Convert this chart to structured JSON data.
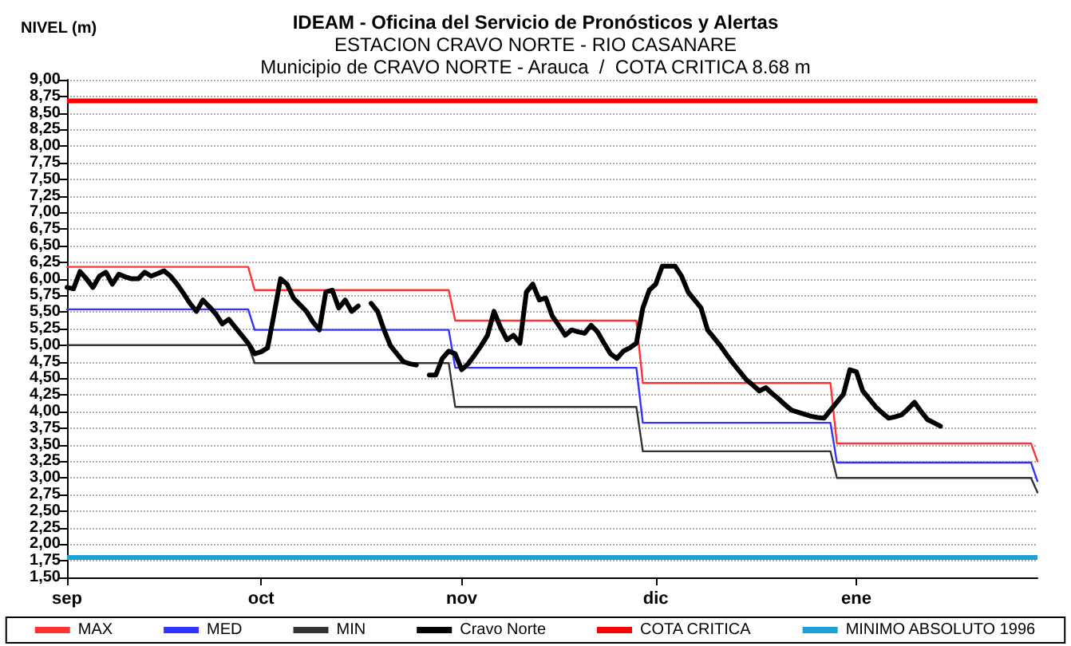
{
  "chart_data": {
    "type": "line",
    "title": "IDEAM - Oficina del Servicio de Pronósticos y Alertas",
    "subtitle": "ESTACION CRAVO NORTE - RIO CASANARE\nMunicipio de CRAVO NORTE - Arauca  /  COTA CRITICA 8.68 m",
    "ylabel": "NIVEL (m)",
    "categories": [
      "sep",
      null,
      null,
      null,
      null,
      null,
      null,
      null,
      null,
      null,
      null,
      null,
      null,
      null,
      null,
      null,
      null,
      null,
      null,
      null,
      null,
      null,
      null,
      null,
      null,
      null,
      null,
      null,
      null,
      null,
      "oct",
      null,
      null,
      null,
      null,
      null,
      null,
      null,
      null,
      null,
      null,
      null,
      null,
      null,
      null,
      null,
      null,
      null,
      null,
      null,
      null,
      null,
      null,
      null,
      null,
      null,
      null,
      null,
      null,
      null,
      null,
      "nov",
      null,
      null,
      null,
      null,
      null,
      null,
      null,
      null,
      null,
      null,
      null,
      null,
      null,
      null,
      null,
      null,
      null,
      null,
      null,
      null,
      null,
      null,
      null,
      null,
      null,
      null,
      null,
      null,
      null,
      "dic",
      null,
      null,
      null,
      null,
      null,
      null,
      null,
      null,
      null,
      null,
      null,
      null,
      null,
      null,
      null,
      null,
      null,
      null,
      null,
      null,
      null,
      null,
      null,
      null,
      null,
      null,
      null,
      null,
      null,
      null,
      "ene",
      null,
      null,
      null,
      null,
      null,
      null,
      null,
      null,
      null,
      null,
      null,
      null,
      null,
      null,
      null,
      null,
      null,
      null,
      null,
      null,
      null,
      null,
      null,
      null,
      null,
      null,
      null,
      null
    ],
    "ylim": [
      1.5,
      9
    ],
    "yticks": [
      {
        "value": 1.5,
        "label": "1,50"
      },
      {
        "value": 1.75,
        "label": "1,75"
      },
      {
        "value": 2,
        "label": "2,00"
      },
      {
        "value": 2.25,
        "label": "2,25"
      },
      {
        "value": 2.5,
        "label": "2,50"
      },
      {
        "value": 2.75,
        "label": "2,75"
      },
      {
        "value": 3,
        "label": "3,00"
      },
      {
        "value": 3.25,
        "label": "3,25"
      },
      {
        "value": 3.5,
        "label": "3,50"
      },
      {
        "value": 3.75,
        "label": "3,75"
      },
      {
        "value": 4,
        "label": "4,00"
      },
      {
        "value": 4.25,
        "label": "4,25"
      },
      {
        "value": 4.5,
        "label": "4,50"
      },
      {
        "value": 4.75,
        "label": "4,75"
      },
      {
        "value": 5,
        "label": "5,00"
      },
      {
        "value": 5.25,
        "label": "5,25"
      },
      {
        "value": 5.5,
        "label": "5,50"
      },
      {
        "value": 5.75,
        "label": "5,75"
      },
      {
        "value": 6,
        "label": "6,00"
      },
      {
        "value": 6.25,
        "label": "6,25"
      },
      {
        "value": 6.5,
        "label": "6,50"
      },
      {
        "value": 6.75,
        "label": "6,75"
      },
      {
        "value": 7,
        "label": "7,00"
      },
      {
        "value": 7.25,
        "label": "7,25"
      },
      {
        "value": 7.5,
        "label": "7,50"
      },
      {
        "value": 7.75,
        "label": "7,75"
      },
      {
        "value": 8,
        "label": "8,00"
      },
      {
        "value": 8.25,
        "label": "8,25"
      },
      {
        "value": 8.5,
        "label": "8,50"
      },
      {
        "value": 8.75,
        "label": "8,75"
      },
      {
        "value": 9,
        "label": "9,00"
      }
    ],
    "grid": "y",
    "legend": "bottom",
    "marker": "none",
    "line_style": "solid",
    "series": [
      {
        "name": "MAX",
        "color": "#ff3333",
        "values": [
          6.18,
          6.18,
          6.18,
          6.18,
          6.18,
          6.18,
          6.18,
          6.18,
          6.18,
          6.18,
          6.18,
          6.18,
          6.18,
          6.18,
          6.18,
          6.18,
          6.18,
          6.18,
          6.18,
          6.18,
          6.18,
          6.18,
          6.18,
          6.18,
          6.18,
          6.18,
          6.18,
          6.18,
          6.18,
          5.83,
          5.83,
          5.83,
          5.83,
          5.83,
          5.83,
          5.83,
          5.83,
          5.83,
          5.83,
          5.83,
          5.83,
          5.83,
          5.83,
          5.83,
          5.83,
          5.83,
          5.83,
          5.83,
          5.83,
          5.83,
          5.83,
          5.83,
          5.83,
          5.83,
          5.83,
          5.83,
          5.83,
          5.83,
          5.83,
          5.83,
          5.37,
          5.37,
          5.37,
          5.37,
          5.37,
          5.37,
          5.37,
          5.37,
          5.37,
          5.37,
          5.37,
          5.37,
          5.37,
          5.37,
          5.37,
          5.37,
          5.37,
          5.37,
          5.37,
          5.37,
          5.37,
          5.37,
          5.37,
          5.37,
          5.37,
          5.37,
          5.37,
          5.37,
          5.37,
          4.43,
          4.43,
          4.43,
          4.43,
          4.43,
          4.43,
          4.43,
          4.43,
          4.43,
          4.43,
          4.43,
          4.43,
          4.43,
          4.43,
          4.43,
          4.43,
          4.43,
          4.43,
          4.43,
          4.43,
          4.43,
          4.43,
          4.43,
          4.43,
          4.43,
          4.43,
          4.43,
          4.43,
          4.43,
          4.43,
          3.52,
          3.52,
          3.52,
          3.52,
          3.52,
          3.52,
          3.52,
          3.52,
          3.52,
          3.52,
          3.52,
          3.52,
          3.52,
          3.52,
          3.52,
          3.52,
          3.52,
          3.52,
          3.52,
          3.52,
          3.52,
          3.52,
          3.52,
          3.52,
          3.52,
          3.52,
          3.52,
          3.52,
          3.52,
          3.52,
          3.52,
          3.25
        ]
      },
      {
        "name": "MED",
        "color": "#3333ff",
        "values": [
          5.54,
          5.54,
          5.54,
          5.54,
          5.54,
          5.54,
          5.54,
          5.54,
          5.54,
          5.54,
          5.54,
          5.54,
          5.54,
          5.54,
          5.54,
          5.54,
          5.54,
          5.54,
          5.54,
          5.54,
          5.54,
          5.54,
          5.54,
          5.54,
          5.54,
          5.54,
          5.54,
          5.54,
          5.54,
          5.23,
          5.23,
          5.23,
          5.23,
          5.23,
          5.23,
          5.23,
          5.23,
          5.23,
          5.23,
          5.23,
          5.23,
          5.23,
          5.23,
          5.23,
          5.23,
          5.23,
          5.23,
          5.23,
          5.23,
          5.23,
          5.23,
          5.23,
          5.23,
          5.23,
          5.23,
          5.23,
          5.23,
          5.23,
          5.23,
          5.23,
          4.66,
          4.66,
          4.66,
          4.66,
          4.66,
          4.66,
          4.66,
          4.66,
          4.66,
          4.66,
          4.66,
          4.66,
          4.66,
          4.66,
          4.66,
          4.66,
          4.66,
          4.66,
          4.66,
          4.66,
          4.66,
          4.66,
          4.66,
          4.66,
          4.66,
          4.66,
          4.66,
          4.66,
          4.66,
          3.83,
          3.83,
          3.83,
          3.83,
          3.83,
          3.83,
          3.83,
          3.83,
          3.83,
          3.83,
          3.83,
          3.83,
          3.83,
          3.83,
          3.83,
          3.83,
          3.83,
          3.83,
          3.83,
          3.83,
          3.83,
          3.83,
          3.83,
          3.83,
          3.83,
          3.83,
          3.83,
          3.83,
          3.83,
          3.83,
          3.23,
          3.23,
          3.23,
          3.23,
          3.23,
          3.23,
          3.23,
          3.23,
          3.23,
          3.23,
          3.23,
          3.23,
          3.23,
          3.23,
          3.23,
          3.23,
          3.23,
          3.23,
          3.23,
          3.23,
          3.23,
          3.23,
          3.23,
          3.23,
          3.23,
          3.23,
          3.23,
          3.23,
          3.23,
          3.23,
          3.23,
          2.95
        ]
      },
      {
        "name": "MIN",
        "color": "#333333",
        "values": [
          5.0,
          5.0,
          5.0,
          5.0,
          5.0,
          5.0,
          5.0,
          5.0,
          5.0,
          5.0,
          5.0,
          5.0,
          5.0,
          5.0,
          5.0,
          5.0,
          5.0,
          5.0,
          5.0,
          5.0,
          5.0,
          5.0,
          5.0,
          5.0,
          5.0,
          5.0,
          5.0,
          5.0,
          5.0,
          4.73,
          4.73,
          4.73,
          4.73,
          4.73,
          4.73,
          4.73,
          4.73,
          4.73,
          4.73,
          4.73,
          4.73,
          4.73,
          4.73,
          4.73,
          4.73,
          4.73,
          4.73,
          4.73,
          4.73,
          4.73,
          4.73,
          4.73,
          4.73,
          4.73,
          4.73,
          4.73,
          4.73,
          4.73,
          4.73,
          4.73,
          4.07,
          4.07,
          4.07,
          4.07,
          4.07,
          4.07,
          4.07,
          4.07,
          4.07,
          4.07,
          4.07,
          4.07,
          4.07,
          4.07,
          4.07,
          4.07,
          4.07,
          4.07,
          4.07,
          4.07,
          4.07,
          4.07,
          4.07,
          4.07,
          4.07,
          4.07,
          4.07,
          4.07,
          4.07,
          3.4,
          3.4,
          3.4,
          3.4,
          3.4,
          3.4,
          3.4,
          3.4,
          3.4,
          3.4,
          3.4,
          3.4,
          3.4,
          3.4,
          3.4,
          3.4,
          3.4,
          3.4,
          3.4,
          3.4,
          3.4,
          3.4,
          3.4,
          3.4,
          3.4,
          3.4,
          3.4,
          3.4,
          3.4,
          3.4,
          3.0,
          3.0,
          3.0,
          3.0,
          3.0,
          3.0,
          3.0,
          3.0,
          3.0,
          3.0,
          3.0,
          3.0,
          3.0,
          3.0,
          3.0,
          3.0,
          3.0,
          3.0,
          3.0,
          3.0,
          3.0,
          3.0,
          3.0,
          3.0,
          3.0,
          3.0,
          3.0,
          3.0,
          3.0,
          3.0,
          3.0,
          2.78
        ]
      },
      {
        "name": "Cravo Norte",
        "color": "#000000",
        "values": [
          5.87,
          5.85,
          6.11,
          6.0,
          5.87,
          6.04,
          6.1,
          5.92,
          6.07,
          6.03,
          6.0,
          6.0,
          6.1,
          6.04,
          6.08,
          6.12,
          6.04,
          5.92,
          5.78,
          5.63,
          5.51,
          5.68,
          5.58,
          5.47,
          5.32,
          5.39,
          5.27,
          5.15,
          5.03,
          4.87,
          4.9,
          4.96,
          5.47,
          6.0,
          5.92,
          5.71,
          5.61,
          5.51,
          5.35,
          5.23,
          5.8,
          5.83,
          5.56,
          5.68,
          5.51,
          5.59,
          null,
          5.63,
          5.51,
          5.23,
          4.99,
          4.87,
          4.75,
          4.72,
          4.7,
          null,
          4.55,
          4.55,
          4.8,
          4.91,
          4.87,
          4.63,
          4.72,
          4.85,
          4.99,
          5.15,
          5.51,
          5.27,
          5.08,
          5.15,
          5.03,
          5.8,
          5.92,
          5.68,
          5.71,
          5.44,
          5.3,
          5.15,
          5.23,
          5.2,
          5.18,
          5.3,
          5.2,
          5.03,
          4.87,
          4.8,
          4.91,
          4.96,
          5.03,
          5.56,
          5.83,
          5.92,
          6.19,
          6.19,
          6.19,
          6.04,
          5.8,
          5.68,
          5.56,
          5.23,
          5.11,
          4.99,
          4.85,
          4.72,
          4.6,
          4.48,
          4.4,
          4.31,
          4.36,
          4.27,
          4.19,
          4.1,
          4.02,
          3.99,
          3.96,
          3.93,
          3.91,
          3.9,
          4.02,
          4.14,
          4.26,
          4.63,
          4.6,
          4.31,
          4.19,
          4.07,
          3.98,
          3.9,
          3.92,
          3.95,
          4.04,
          4.14,
          4.0,
          3.88,
          3.83,
          3.78,
          null,
          null,
          null,
          null,
          null,
          null,
          null,
          null,
          null,
          null,
          null,
          null,
          null,
          null,
          null
        ]
      }
    ],
    "ref_lines": [
      {
        "axis": "y",
        "value": 8.68,
        "label": "COTA CRITICA",
        "color": "#ff0000"
      },
      {
        "axis": "y",
        "value": 1.8,
        "label": "MINIMO ABSOLUTO 1996",
        "color": "#1ba1d6"
      }
    ]
  }
}
